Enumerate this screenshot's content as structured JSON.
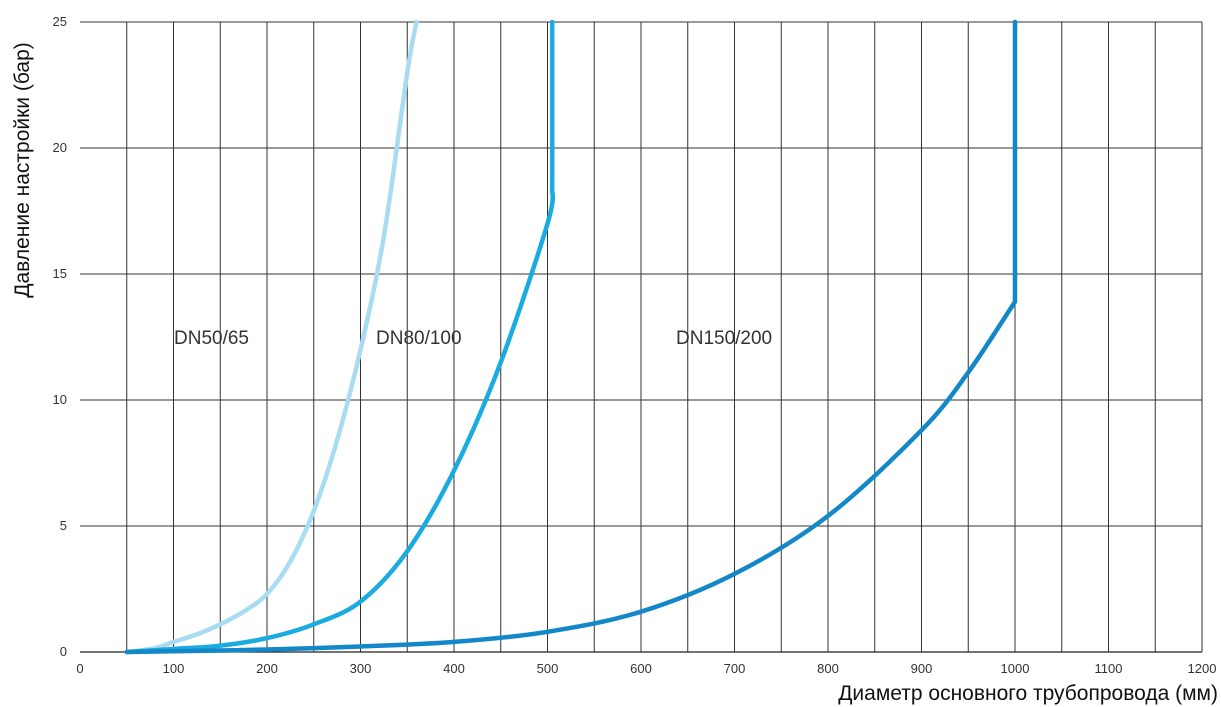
{
  "chart_data": {
    "type": "line",
    "title": "",
    "xlabel": "Диаметр основного трубопровода (мм)",
    "ylabel": "Давление настройки (бар)",
    "xlim": [
      0,
      1200
    ],
    "ylim": [
      0,
      25
    ],
    "x_ticks": [
      "0",
      "100",
      "200",
      "300",
      "400",
      "500",
      "600",
      "700",
      "800",
      "900",
      "1000",
      "1100",
      "1200"
    ],
    "y_ticks": [
      "0",
      "5",
      "10",
      "15",
      "20",
      "25"
    ],
    "grid": {
      "vertical_every": 50,
      "horizontal_every": 5
    },
    "series": [
      {
        "name": "DN50/65",
        "color": "#a8dcf2",
        "points": [
          [
            50,
            0
          ],
          [
            80,
            0.15
          ],
          [
            100,
            0.4
          ],
          [
            125,
            0.7
          ],
          [
            150,
            1.1
          ],
          [
            175,
            1.6
          ],
          [
            200,
            2.3
          ],
          [
            225,
            3.6
          ],
          [
            250,
            5.6
          ],
          [
            275,
            8.4
          ],
          [
            300,
            12.0
          ],
          [
            325,
            16.5
          ],
          [
            350,
            23.0
          ],
          [
            360,
            25.0
          ]
        ]
      },
      {
        "name": "DN80/100",
        "color": "#1aabe0",
        "points": [
          [
            50,
            0
          ],
          [
            100,
            0.12
          ],
          [
            150,
            0.25
          ],
          [
            200,
            0.55
          ],
          [
            250,
            1.1
          ],
          [
            300,
            2.0
          ],
          [
            350,
            4.0
          ],
          [
            400,
            7.2
          ],
          [
            450,
            11.5
          ],
          [
            500,
            17.0
          ],
          [
            505,
            18.4
          ],
          [
            505,
            25.0
          ]
        ]
      },
      {
        "name": "DN150/200",
        "color": "#1388c8",
        "points": [
          [
            50,
            0
          ],
          [
            100,
            0.03
          ],
          [
            200,
            0.1
          ],
          [
            300,
            0.22
          ],
          [
            400,
            0.4
          ],
          [
            500,
            0.8
          ],
          [
            600,
            1.6
          ],
          [
            700,
            3.1
          ],
          [
            800,
            5.4
          ],
          [
            900,
            8.8
          ],
          [
            950,
            11.1
          ],
          [
            1000,
            13.9
          ],
          [
            1000,
            25.0
          ]
        ]
      }
    ]
  }
}
